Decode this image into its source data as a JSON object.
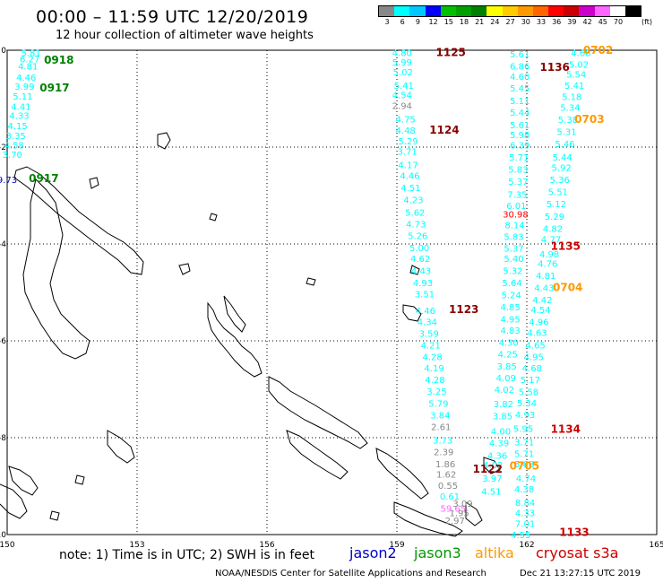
{
  "header": {
    "title": "00:00 – 11:59 UTC 12/20/2019",
    "subtitle": "12 hour collection of altimeter wave heights"
  },
  "colorbar": {
    "labels": [
      "3",
      "6",
      "9",
      "12",
      "15",
      "18",
      "21",
      "24",
      "27",
      "30",
      "33",
      "36",
      "39",
      "42",
      "45",
      "70"
    ],
    "unit": "(ft)",
    "colors": [
      "#888888",
      "#00ffff",
      "#00c8ff",
      "#0000ff",
      "#00c000",
      "#00a000",
      "#008000",
      "#ffff00",
      "#ffcc00",
      "#ff9900",
      "#ff6600",
      "#ff0000",
      "#cc0000",
      "#cc00cc",
      "#ff66ff",
      "#ffffff",
      "#000000"
    ]
  },
  "note": "note: 1) Time is in UTC; 2) SWH is in feet",
  "legend": [
    {
      "label": "jason2",
      "color": "#0000cc"
    },
    {
      "label": "jason3",
      "color": "#009900"
    },
    {
      "label": "altika",
      "color": "#ff9900"
    },
    {
      "label": "cryosat s3a",
      "color": "#cc0000"
    }
  ],
  "footer": {
    "source": "NOAA/NESDIS Center for Satellite Applications and Research",
    "generated": "Dec 21 13:27:15 UTC 2019"
  },
  "chart_data": {
    "type": "scatter",
    "xaxis": {
      "ticks": [
        "150",
        "153",
        "156",
        "159",
        "162",
        "165"
      ],
      "range": [
        150,
        165
      ]
    },
    "yaxis": {
      "ticks": [
        "0",
        "-2",
        "-4",
        "-6",
        "-8",
        "-10"
      ],
      "range": [
        -10,
        0
      ]
    },
    "grid": true,
    "color_map": {
      "cyan": "#00ffff",
      "gray": "#888888",
      "red": "#ff0000",
      "pink": "#ff66ff"
    },
    "time_label_colors": {
      "jason3": "#008000",
      "cryosat": "#880000",
      "altika": "#ff9900",
      "cryosat_s3a": "#cc0000",
      "blue": "#0000cc"
    },
    "tracks": [
      {
        "name": "jason3-0917-0918",
        "time_labels": [
          {
            "text": "0918",
            "lon": 150.85,
            "lat": -0.2,
            "color": "jason3"
          },
          {
            "text": "0917",
            "lon": 150.75,
            "lat": -0.78,
            "color": "jason3"
          },
          {
            "text": "0917",
            "lon": 150.5,
            "lat": -2.65,
            "color": "jason3"
          }
        ],
        "points": [
          {
            "lon": 150.55,
            "lat": -0.05,
            "v": "5.81"
          },
          {
            "lon": 150.52,
            "lat": -0.18,
            "v": "6.27"
          },
          {
            "lon": 150.48,
            "lat": -0.32,
            "v": "4.81"
          },
          {
            "lon": 150.44,
            "lat": -0.56,
            "v": "4.46"
          },
          {
            "lon": 150.4,
            "lat": -0.74,
            "v": "3.99"
          },
          {
            "lon": 150.36,
            "lat": -0.94,
            "v": "5.11"
          },
          {
            "lon": 150.32,
            "lat": -1.16,
            "v": "4.41"
          },
          {
            "lon": 150.28,
            "lat": -1.34,
            "v": "4.33"
          },
          {
            "lon": 150.24,
            "lat": -1.56,
            "v": "4.15"
          },
          {
            "lon": 150.2,
            "lat": -1.76,
            "v": "3.35"
          },
          {
            "lon": 150.16,
            "lat": -1.95,
            "v": "4.58"
          },
          {
            "lon": 150.12,
            "lat": -2.15,
            "v": "3.70"
          },
          {
            "lon": 150.0,
            "lat": -2.67,
            "v": "9.73",
            "c": "blue"
          }
        ]
      },
      {
        "name": "cryosat-1123-1125",
        "time_labels": [
          {
            "text": "1125",
            "lon": 159.9,
            "lat": -0.05,
            "color": "cryosat"
          },
          {
            "text": "1124",
            "lon": 159.75,
            "lat": -1.65,
            "color": "cryosat"
          },
          {
            "text": "1123",
            "lon": 160.2,
            "lat": -5.35,
            "color": "cryosat"
          }
        ],
        "points": [
          {
            "lon": 159.12,
            "lat": -0.05,
            "v": "4.80"
          },
          {
            "lon": 159.12,
            "lat": -0.24,
            "v": "5.99"
          },
          {
            "lon": 159.14,
            "lat": -0.44,
            "v": "5.02"
          },
          {
            "lon": 159.16,
            "lat": -0.72,
            "v": "5.41"
          },
          {
            "lon": 159.12,
            "lat": -0.92,
            "v": "4.54"
          },
          {
            "lon": 159.12,
            "lat": -1.14,
            "v": "2.94",
            "c": "gray"
          },
          {
            "lon": 159.2,
            "lat": -1.42,
            "v": "4.75"
          },
          {
            "lon": 159.2,
            "lat": -1.65,
            "v": "4.48"
          },
          {
            "lon": 159.26,
            "lat": -1.87,
            "v": "5.29"
          },
          {
            "lon": 159.24,
            "lat": -2.08,
            "v": "3.71"
          },
          {
            "lon": 159.26,
            "lat": -2.36,
            "v": "4.17"
          },
          {
            "lon": 159.3,
            "lat": -2.58,
            "v": "4.46"
          },
          {
            "lon": 159.32,
            "lat": -2.83,
            "v": "4.51"
          },
          {
            "lon": 159.38,
            "lat": -3.08,
            "v": "4.23"
          },
          {
            "lon": 159.42,
            "lat": -3.34,
            "v": "5.62"
          },
          {
            "lon": 159.44,
            "lat": -3.58,
            "v": "4.73"
          },
          {
            "lon": 159.48,
            "lat": -3.82,
            "v": "5.26"
          },
          {
            "lon": 159.52,
            "lat": -4.07,
            "v": "5.00"
          },
          {
            "lon": 159.54,
            "lat": -4.3,
            "v": "4.62"
          },
          {
            "lon": 159.56,
            "lat": -4.55,
            "v": "4.43"
          },
          {
            "lon": 159.6,
            "lat": -4.8,
            "v": "4.93"
          },
          {
            "lon": 159.64,
            "lat": -5.03,
            "v": "3.51"
          },
          {
            "lon": 159.66,
            "lat": -5.37,
            "v": "4.46"
          },
          {
            "lon": 159.7,
            "lat": -5.6,
            "v": "4.34"
          },
          {
            "lon": 159.74,
            "lat": -5.84,
            "v": "3.59"
          },
          {
            "lon": 159.78,
            "lat": -6.08,
            "v": "4.21"
          },
          {
            "lon": 159.82,
            "lat": -6.32,
            "v": "4.28"
          },
          {
            "lon": 159.86,
            "lat": -6.56,
            "v": "4.19"
          },
          {
            "lon": 159.88,
            "lat": -6.8,
            "v": "4.28"
          },
          {
            "lon": 159.92,
            "lat": -7.04,
            "v": "3.25"
          },
          {
            "lon": 159.96,
            "lat": -7.29,
            "v": "5.79"
          },
          {
            "lon": 160.0,
            "lat": -7.53,
            "v": "3.84"
          },
          {
            "lon": 160.02,
            "lat": -7.77,
            "v": "2.61",
            "c": "gray"
          },
          {
            "lon": 160.06,
            "lat": -8.05,
            "v": "3.73"
          },
          {
            "lon": 160.08,
            "lat": -8.29,
            "v": "2.39",
            "c": "gray"
          },
          {
            "lon": 160.12,
            "lat": -8.54,
            "v": "1.86",
            "c": "gray"
          },
          {
            "lon": 160.14,
            "lat": -8.75,
            "v": "1.62",
            "c": "gray"
          },
          {
            "lon": 160.18,
            "lat": -8.98,
            "v": "0.55",
            "c": "gray"
          },
          {
            "lon": 160.22,
            "lat": -9.2,
            "v": "0.61"
          },
          {
            "lon": 160.3,
            "lat": -9.45,
            "v": "59.65",
            "c": "pink"
          },
          {
            "lon": 160.52,
            "lat": -9.35,
            "v": "3.09",
            "c": "gray"
          },
          {
            "lon": 160.44,
            "lat": -9.55,
            "v": "1.95",
            "c": "gray"
          },
          {
            "lon": 160.34,
            "lat": -9.7,
            "v": "2.97",
            "c": "gray"
          }
        ]
      },
      {
        "name": "cryosat-1122-1136",
        "time_labels": [
          {
            "text": "1136",
            "lon": 162.3,
            "lat": -0.35,
            "color": "cryosat"
          },
          {
            "text": "1135",
            "lon": 162.55,
            "lat": -4.05,
            "color": "cryosat_s3a"
          },
          {
            "text": "1122",
            "lon": 160.75,
            "lat": -8.65,
            "color": "cryosat"
          }
        ],
        "points": [
          {
            "lon": 161.84,
            "lat": -0.07,
            "v": "5.61"
          },
          {
            "lon": 161.84,
            "lat": -0.32,
            "v": "6.86"
          },
          {
            "lon": 161.84,
            "lat": -0.54,
            "v": "4.60"
          },
          {
            "lon": 161.84,
            "lat": -0.78,
            "v": "5.45"
          },
          {
            "lon": 161.84,
            "lat": -1.04,
            "v": "5.11"
          },
          {
            "lon": 161.84,
            "lat": -1.28,
            "v": "5.44"
          },
          {
            "lon": 161.84,
            "lat": -1.54,
            "v": "5.61"
          },
          {
            "lon": 161.84,
            "lat": -1.74,
            "v": "5.98"
          },
          {
            "lon": 161.84,
            "lat": -1.95,
            "v": "6.39"
          },
          {
            "lon": 161.82,
            "lat": -2.2,
            "v": "5.71"
          },
          {
            "lon": 161.8,
            "lat": -2.45,
            "v": "5.83"
          },
          {
            "lon": 161.8,
            "lat": -2.7,
            "v": "5.37"
          },
          {
            "lon": 161.78,
            "lat": -2.97,
            "v": "7.35"
          },
          {
            "lon": 161.76,
            "lat": -3.2,
            "v": "6.01"
          },
          {
            "lon": 161.74,
            "lat": -3.38,
            "v": "30.98",
            "c": "red"
          },
          {
            "lon": 161.72,
            "lat": -3.6,
            "v": "8.14"
          },
          {
            "lon": 161.7,
            "lat": -3.84,
            "v": "5.83"
          },
          {
            "lon": 161.7,
            "lat": -4.08,
            "v": "5.37"
          },
          {
            "lon": 161.7,
            "lat": -4.3,
            "v": "5.40"
          },
          {
            "lon": 161.68,
            "lat": -4.55,
            "v": "5.32"
          },
          {
            "lon": 161.66,
            "lat": -4.8,
            "v": "5.64"
          },
          {
            "lon": 161.64,
            "lat": -5.05,
            "v": "5.24"
          },
          {
            "lon": 161.62,
            "lat": -5.3,
            "v": "4.85"
          },
          {
            "lon": 161.62,
            "lat": -5.55,
            "v": "4.95"
          },
          {
            "lon": 161.62,
            "lat": -5.78,
            "v": "4.83"
          },
          {
            "lon": 161.58,
            "lat": -6.03,
            "v": "4.30"
          },
          {
            "lon": 161.56,
            "lat": -6.27,
            "v": "4.25"
          },
          {
            "lon": 161.54,
            "lat": -6.52,
            "v": "3.85"
          },
          {
            "lon": 161.52,
            "lat": -6.76,
            "v": "4.09"
          },
          {
            "lon": 161.48,
            "lat": -7.0,
            "v": "4.02"
          },
          {
            "lon": 161.46,
            "lat": -7.3,
            "v": "3.82"
          },
          {
            "lon": 161.44,
            "lat": -7.55,
            "v": "3.85"
          },
          {
            "lon": 161.4,
            "lat": -7.86,
            "v": "4.00"
          },
          {
            "lon": 161.36,
            "lat": -8.1,
            "v": "4.39"
          },
          {
            "lon": 161.32,
            "lat": -8.36,
            "v": "4.36"
          },
          {
            "lon": 161.22,
            "lat": -8.56,
            "v": "4.02"
          },
          {
            "lon": 161.2,
            "lat": -8.83,
            "v": "3.97"
          },
          {
            "lon": 161.18,
            "lat": -9.1,
            "v": "4.51"
          }
        ]
      },
      {
        "name": "altika-0702-0705",
        "time_labels": [
          {
            "text": "0702",
            "lon": 163.3,
            "lat": 0.0,
            "color": "altika"
          },
          {
            "text": "0703",
            "lon": 163.1,
            "lat": -1.43,
            "color": "altika"
          },
          {
            "text": "0704",
            "lon": 162.6,
            "lat": -4.9,
            "color": "altika"
          },
          {
            "text": "0705",
            "lon": 161.6,
            "lat": -8.58,
            "color": "altika"
          }
        ],
        "points": [
          {
            "lon": 163.25,
            "lat": -0.05,
            "v": "4.68"
          },
          {
            "lon": 163.2,
            "lat": -0.29,
            "v": "5.02"
          },
          {
            "lon": 163.14,
            "lat": -0.49,
            "v": "5.54"
          },
          {
            "lon": 163.1,
            "lat": -0.72,
            "v": "5.41"
          },
          {
            "lon": 163.04,
            "lat": -0.95,
            "v": "5.18"
          },
          {
            "lon": 163.0,
            "lat": -1.18,
            "v": "5.34"
          },
          {
            "lon": 162.95,
            "lat": -1.43,
            "v": "5.38"
          },
          {
            "lon": 162.92,
            "lat": -1.68,
            "v": "5.31"
          },
          {
            "lon": 162.88,
            "lat": -1.93,
            "v": "5.46"
          },
          {
            "lon": 162.82,
            "lat": -2.2,
            "v": "5.44"
          },
          {
            "lon": 162.8,
            "lat": -2.42,
            "v": "5.92"
          },
          {
            "lon": 162.76,
            "lat": -2.67,
            "v": "5.36"
          },
          {
            "lon": 162.72,
            "lat": -2.92,
            "v": "5.51"
          },
          {
            "lon": 162.68,
            "lat": -3.17,
            "v": "5.12"
          },
          {
            "lon": 162.64,
            "lat": -3.43,
            "v": "5.29"
          },
          {
            "lon": 162.6,
            "lat": -3.68,
            "v": "4.82"
          },
          {
            "lon": 162.56,
            "lat": -3.9,
            "v": "4.77"
          },
          {
            "lon": 162.52,
            "lat": -4.2,
            "v": "4.98"
          },
          {
            "lon": 162.48,
            "lat": -4.4,
            "v": "4.76"
          },
          {
            "lon": 162.44,
            "lat": -4.65,
            "v": "4.81"
          },
          {
            "lon": 162.4,
            "lat": -4.9,
            "v": "4.43"
          },
          {
            "lon": 162.36,
            "lat": -5.15,
            "v": "4.42"
          },
          {
            "lon": 162.32,
            "lat": -5.35,
            "v": "4.54"
          },
          {
            "lon": 162.28,
            "lat": -5.6,
            "v": "4.96"
          },
          {
            "lon": 162.24,
            "lat": -5.82,
            "v": "4.63"
          },
          {
            "lon": 162.2,
            "lat": -6.08,
            "v": "4.65"
          },
          {
            "lon": 162.16,
            "lat": -6.32,
            "v": "4.95"
          },
          {
            "lon": 162.12,
            "lat": -6.56,
            "v": "4.68"
          },
          {
            "lon": 162.08,
            "lat": -6.8,
            "v": "5.17"
          },
          {
            "lon": 162.04,
            "lat": -7.05,
            "v": "5.58"
          },
          {
            "lon": 162.0,
            "lat": -7.28,
            "v": "5.34"
          },
          {
            "lon": 161.96,
            "lat": -7.52,
            "v": "4.93"
          },
          {
            "lon": 161.92,
            "lat": -7.81,
            "v": "5.95"
          },
          {
            "lon": 161.94,
            "lat": -8.08,
            "v": "3.71"
          },
          {
            "lon": 161.94,
            "lat": -8.32,
            "v": "5.71"
          },
          {
            "lon": 161.94,
            "lat": -8.54,
            "v": "5.68"
          },
          {
            "lon": 161.98,
            "lat": -8.83,
            "v": "4.74"
          },
          {
            "lon": 161.94,
            "lat": -9.06,
            "v": "4.38"
          },
          {
            "lon": 161.96,
            "lat": -9.33,
            "v": "8.84"
          },
          {
            "lon": 161.96,
            "lat": -9.55,
            "v": "4.33"
          },
          {
            "lon": 161.96,
            "lat": -9.77,
            "v": "7.01"
          },
          {
            "lon": 161.86,
            "lat": -10.0,
            "v": "4.55"
          }
        ]
      },
      {
        "name": "s3a-1133-1134",
        "time_labels": [
          {
            "text": "1134",
            "lon": 162.55,
            "lat": -7.82,
            "color": "cryosat_s3a"
          },
          {
            "text": "1133",
            "lon": 162.75,
            "lat": -9.95,
            "color": "cryosat_s3a"
          }
        ],
        "points": []
      }
    ]
  }
}
